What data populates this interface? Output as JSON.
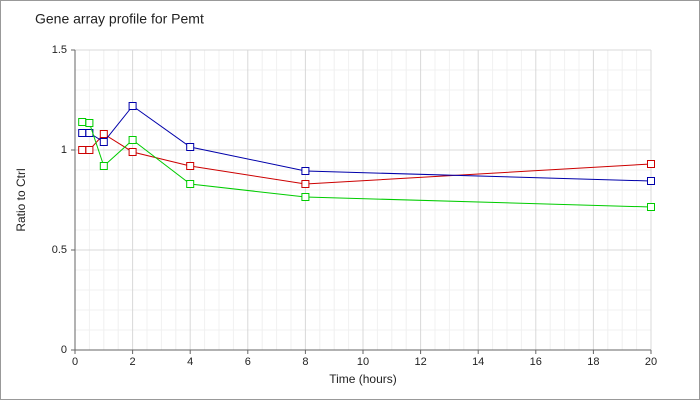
{
  "chart_data": {
    "type": "line",
    "title": "Gene array profile for Pemt",
    "x_label": "Time (hours)",
    "y_label": "Ratio to Ctrl",
    "x": [
      0.25,
      0.5,
      1,
      2,
      4,
      8,
      20
    ],
    "series": [
      {
        "color": "#cc0000",
        "values": [
          1.0,
          1.0,
          1.08,
          0.99,
          0.92,
          0.83,
          0.93
        ]
      },
      {
        "color": "#0000aa",
        "values": [
          1.085,
          1.085,
          1.04,
          1.22,
          1.015,
          0.895,
          0.845
        ]
      },
      {
        "color": "#00cc00",
        "values": [
          1.14,
          1.135,
          0.92,
          1.05,
          0.83,
          0.765,
          0.715
        ]
      }
    ],
    "xlim": [
      0,
      20
    ],
    "xticks": [
      0,
      2,
      4,
      6,
      8,
      10,
      12,
      14,
      16,
      18,
      20
    ],
    "ylim": [
      0,
      1.5
    ],
    "yticks": [
      0,
      0.5,
      1,
      1.5
    ],
    "grid": true
  }
}
